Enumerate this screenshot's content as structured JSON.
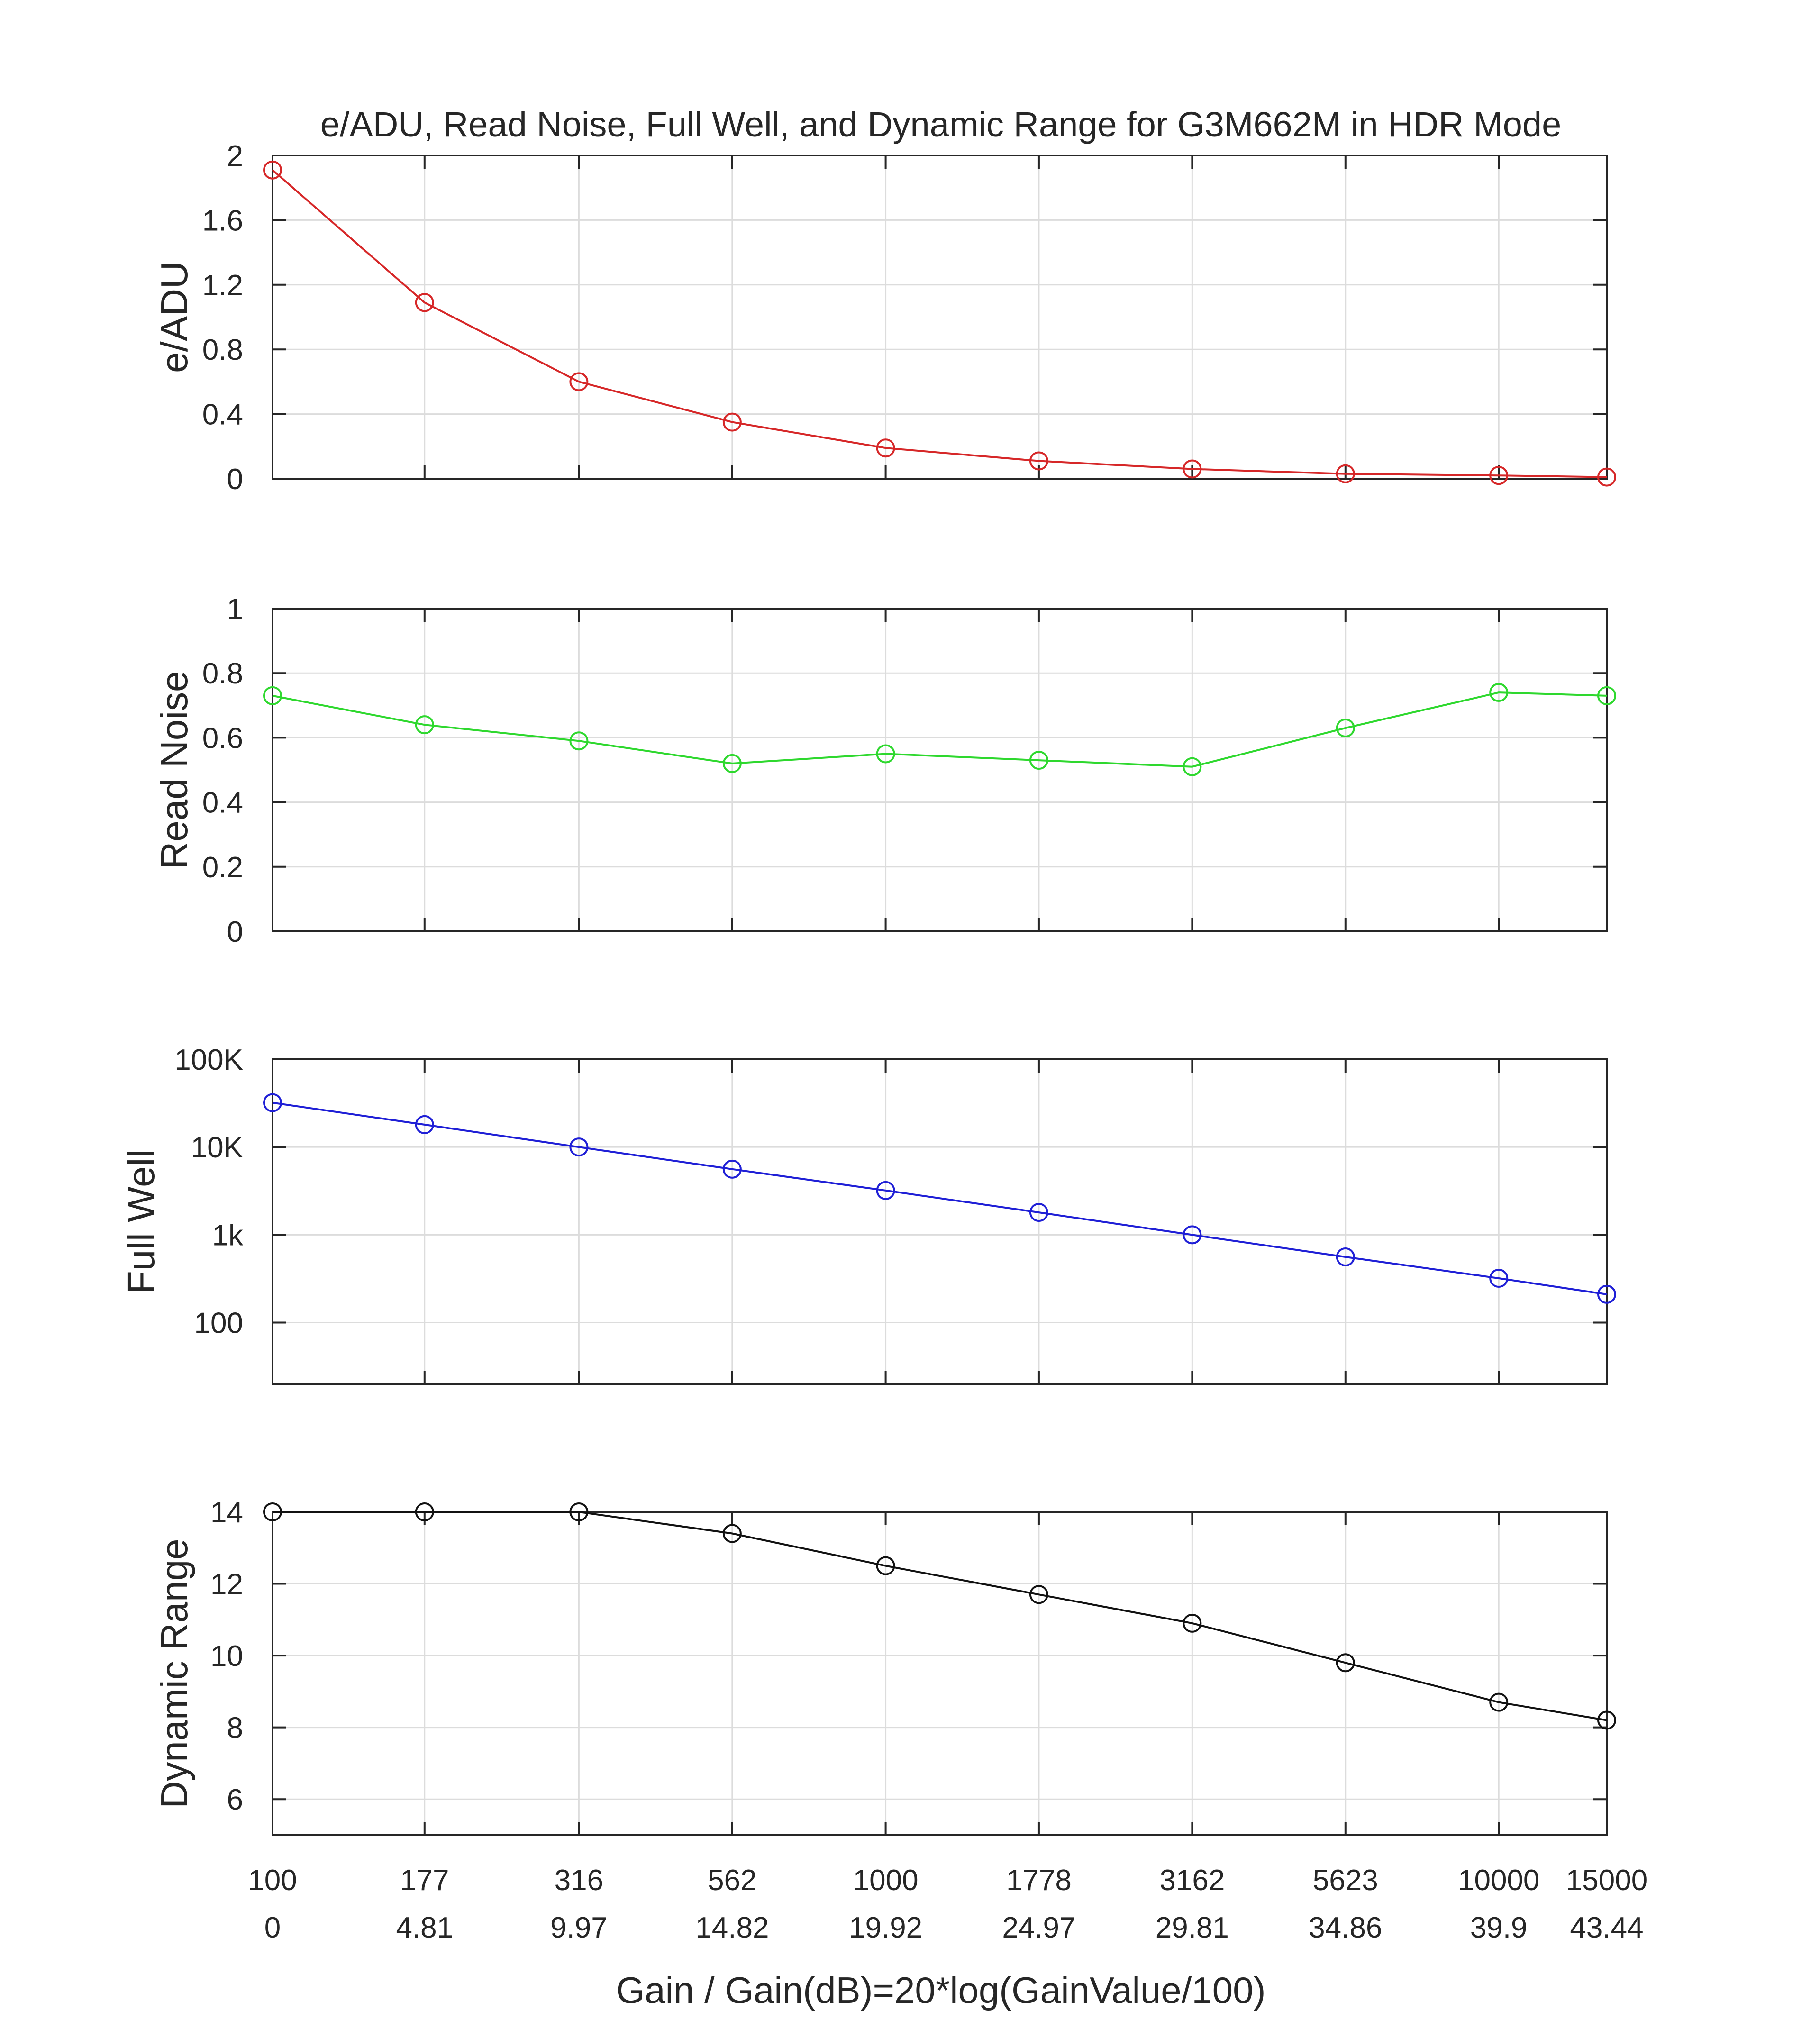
{
  "chart_data": {
    "title": "e/ADU, Read Noise, Full Well, and Dynamic Range for G3M662M in HDR Mode",
    "xlabel": "Gain / Gain(dB)=20*log(GainValue/100)",
    "type": "line",
    "x": [
      100,
      177,
      316,
      562,
      1000,
      1778,
      3162,
      5623,
      10000,
      15000
    ],
    "x_scale": "log",
    "xlim": [
      100,
      15000
    ],
    "grid": true,
    "x_tick_labels_gain": [
      "100",
      "177",
      "316",
      "562",
      "1000",
      "1778",
      "3162",
      "5623",
      "10000",
      "15000"
    ],
    "x_tick_labels_db": [
      "0",
      "4.81",
      "9.97",
      "14.82",
      "19.92",
      "24.97",
      "29.81",
      "34.86",
      "39.9",
      "43.44"
    ],
    "panels": [
      {
        "ylabel": "e/ADU",
        "color": "#d62728",
        "marker": "circle",
        "y_scale": "linear",
        "ylim": [
          0,
          2
        ],
        "yticks": [
          0,
          0.4,
          0.8,
          1.2,
          1.6,
          2
        ],
        "ytick_labels": [
          "0",
          "0.4",
          "0.8",
          "1.2",
          "1.6",
          "2"
        ],
        "values": [
          1.91,
          1.09,
          0.6,
          0.35,
          0.19,
          0.11,
          0.06,
          0.03,
          0.02,
          0.01
        ]
      },
      {
        "ylabel": "Read Noise",
        "color": "#2ed82e",
        "marker": "circle",
        "y_scale": "linear",
        "ylim": [
          0,
          1
        ],
        "yticks": [
          0,
          0.2,
          0.4,
          0.6,
          0.8,
          1
        ],
        "ytick_labels": [
          "0",
          "0.2",
          "0.4",
          "0.6",
          "0.8",
          "1"
        ],
        "values": [
          0.73,
          0.64,
          0.59,
          0.52,
          0.55,
          0.53,
          0.51,
          0.63,
          0.74,
          0.73
        ]
      },
      {
        "ylabel": "Full Well",
        "color": "#1f1fd6",
        "marker": "circle",
        "y_scale": "log",
        "ylim": [
          20,
          100000
        ],
        "yticks": [
          100,
          1000,
          10000,
          100000
        ],
        "ytick_labels": [
          "100",
          "1k",
          "10K",
          "100K"
        ],
        "values": [
          32000,
          18000,
          10000,
          5600,
          3200,
          1800,
          1000,
          560,
          320,
          210
        ]
      },
      {
        "ylabel": "Dynamic Range",
        "color": "#111111",
        "marker": "circle",
        "y_scale": "linear",
        "ylim": [
          5,
          14
        ],
        "yticks": [
          6,
          8,
          10,
          12,
          14
        ],
        "ytick_labels": [
          "6",
          "8",
          "10",
          "12",
          "14"
        ],
        "values": [
          14,
          14,
          14,
          13.4,
          12.5,
          11.7,
          10.9,
          9.8,
          8.7,
          8.2
        ]
      }
    ]
  }
}
